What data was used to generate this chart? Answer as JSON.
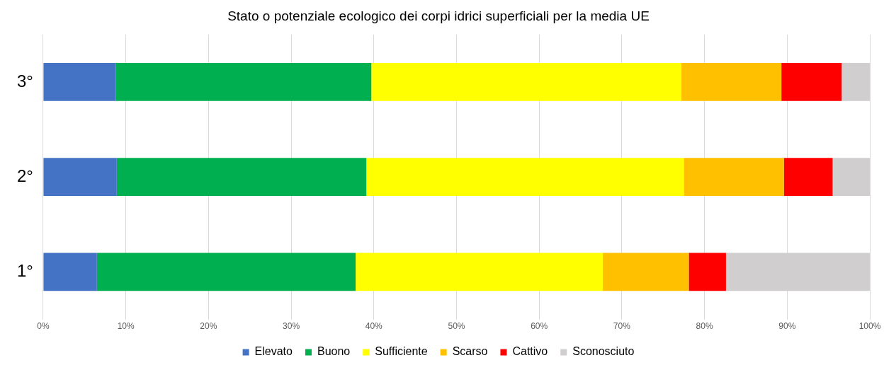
{
  "chart_data": {
    "type": "bar",
    "orientation": "horizontal",
    "stacked": true,
    "title": "Stato o potenziale ecologico dei corpi idrici superficiali per la media UE",
    "categories": [
      "3°",
      "2°",
      "1°"
    ],
    "series": [
      {
        "name": "Elevato",
        "color": "#4472c4",
        "values": [
          8.8,
          8.9,
          6.5
        ]
      },
      {
        "name": "Buono",
        "color": "#00b050",
        "values": [
          30.9,
          30.2,
          31.3
        ]
      },
      {
        "name": "Sufficiente",
        "color": "#ffff00",
        "values": [
          37.5,
          38.4,
          29.9
        ]
      },
      {
        "name": "Scarso",
        "color": "#ffc000",
        "values": [
          12.1,
          12.1,
          10.4
        ]
      },
      {
        "name": "Cattivo",
        "color": "#ff0000",
        "values": [
          7.3,
          5.9,
          4.5
        ]
      },
      {
        "name": "Sconosciuto",
        "color": "#d0cece",
        "values": [
          3.4,
          4.5,
          17.4
        ]
      }
    ],
    "xlim": [
      0,
      100
    ],
    "xticks": [
      {
        "value": 0,
        "label": "0%"
      },
      {
        "value": 10,
        "label": "10%"
      },
      {
        "value": 20,
        "label": "20%"
      },
      {
        "value": 30,
        "label": "30%"
      },
      {
        "value": 40,
        "label": "40%"
      },
      {
        "value": 50,
        "label": "50%"
      },
      {
        "value": 60,
        "label": "60%"
      },
      {
        "value": 70,
        "label": "70%"
      },
      {
        "value": 80,
        "label": "80%"
      },
      {
        "value": 90,
        "label": "90%"
      },
      {
        "value": 100,
        "label": "100%"
      }
    ],
    "grid": "x",
    "legend": "bottom"
  }
}
